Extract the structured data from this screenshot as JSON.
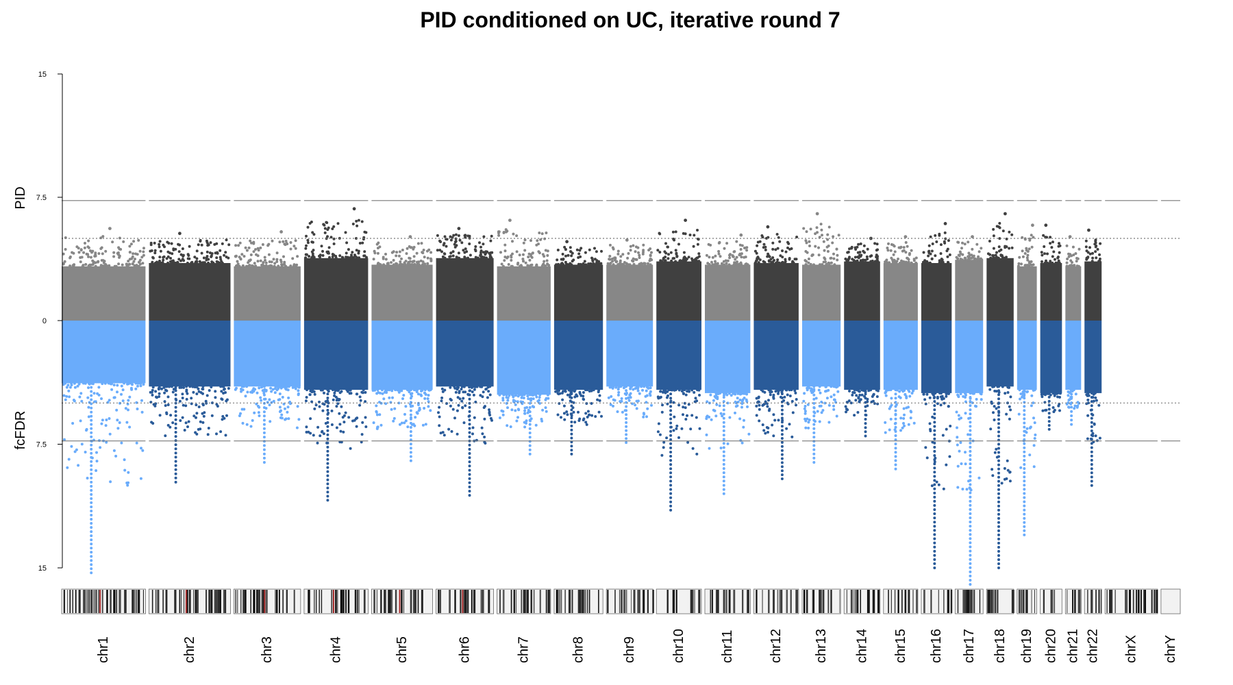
{
  "chart_data": {
    "type": "scatter",
    "title": "PID conditioned on UC, iterative round 7",
    "y_top_label": "PID",
    "y_bottom_label": "fcFDR",
    "y_ticks": [
      "15",
      "7.5",
      "0",
      "7.5",
      "15"
    ],
    "ylim_top": [
      0,
      15
    ],
    "ylim_bottom": [
      0,
      15
    ],
    "thresholds": [
      {
        "panel": "top",
        "value": 7.3,
        "style": "dashed"
      },
      {
        "panel": "top",
        "value": 5.0,
        "style": "dotted"
      },
      {
        "panel": "bottom",
        "value": 7.3,
        "style": "dashed"
      },
      {
        "panel": "bottom",
        "value": 5.0,
        "style": "dotted"
      }
    ],
    "colors": {
      "top_light": "#878787",
      "top_dark": "#404040",
      "bottom_light": "#6aacfb",
      "bottom_dark": "#2a5b99",
      "threshold": "#777777"
    },
    "chromosomes": [
      {
        "name": "chr1",
        "length": 248.9,
        "top_base": 3.3,
        "top_peak": 5.6,
        "bottom_base": 3.8,
        "bottom_peak": 15.3
      },
      {
        "name": "chr2",
        "length": 242.2,
        "top_base": 3.5,
        "top_peak": 5.3,
        "bottom_base": 4.0,
        "bottom_peak": 9.8
      },
      {
        "name": "chr3",
        "length": 198.3,
        "top_base": 3.3,
        "top_peak": 5.4,
        "bottom_base": 4.0,
        "bottom_peak": 8.6
      },
      {
        "name": "chr4",
        "length": 190.2,
        "top_base": 3.8,
        "top_peak": 6.8,
        "bottom_base": 4.2,
        "bottom_peak": 10.9
      },
      {
        "name": "chr5",
        "length": 181.5,
        "top_base": 3.4,
        "top_peak": 5.1,
        "bottom_base": 4.2,
        "bottom_peak": 8.5
      },
      {
        "name": "chr6",
        "length": 170.8,
        "top_base": 3.8,
        "top_peak": 5.6,
        "bottom_base": 4.0,
        "bottom_peak": 10.6
      },
      {
        "name": "chr7",
        "length": 159.3,
        "top_base": 3.3,
        "top_peak": 6.1,
        "bottom_base": 4.5,
        "bottom_peak": 8.1
      },
      {
        "name": "chr8",
        "length": 145.1,
        "top_base": 3.4,
        "top_peak": 4.8,
        "bottom_base": 4.2,
        "bottom_peak": 8.1
      },
      {
        "name": "chr9",
        "length": 138.4,
        "top_base": 3.4,
        "top_peak": 4.9,
        "bottom_base": 4.0,
        "bottom_peak": 7.4
      },
      {
        "name": "chr10",
        "length": 133.8,
        "top_base": 3.6,
        "top_peak": 6.1,
        "bottom_base": 4.2,
        "bottom_peak": 11.5
      },
      {
        "name": "chr11",
        "length": 135.1,
        "top_base": 3.4,
        "top_peak": 5.2,
        "bottom_base": 4.4,
        "bottom_peak": 10.5
      },
      {
        "name": "chr12",
        "length": 133.3,
        "top_base": 3.5,
        "top_peak": 5.7,
        "bottom_base": 4.2,
        "bottom_peak": 9.6
      },
      {
        "name": "chr13",
        "length": 114.4,
        "top_base": 3.4,
        "top_peak": 6.5,
        "bottom_base": 4.0,
        "bottom_peak": 8.6
      },
      {
        "name": "chr14",
        "length": 107.0,
        "top_base": 3.6,
        "top_peak": 5.0,
        "bottom_base": 4.2,
        "bottom_peak": 7.0
      },
      {
        "name": "chr15",
        "length": 102.0,
        "top_base": 3.5,
        "top_peak": 5.1,
        "bottom_base": 4.2,
        "bottom_peak": 9.0
      },
      {
        "name": "chr16",
        "length": 90.3,
        "top_base": 3.5,
        "top_peak": 5.9,
        "bottom_base": 4.4,
        "bottom_peak": 15.0
      },
      {
        "name": "chr17",
        "length": 83.3,
        "top_base": 3.7,
        "top_peak": 5.1,
        "bottom_base": 4.4,
        "bottom_peak": 16.0
      },
      {
        "name": "chr18",
        "length": 80.4,
        "top_base": 3.8,
        "top_peak": 6.5,
        "bottom_base": 4.0,
        "bottom_peak": 15.0
      },
      {
        "name": "chr19",
        "length": 58.6,
        "top_base": 3.3,
        "top_peak": 5.8,
        "bottom_base": 4.2,
        "bottom_peak": 13.0
      },
      {
        "name": "chr20",
        "length": 64.4,
        "top_base": 3.5,
        "top_peak": 5.8,
        "bottom_base": 4.4,
        "bottom_peak": 6.6
      },
      {
        "name": "chr21",
        "length": 46.7,
        "top_base": 3.3,
        "top_peak": 5.1,
        "bottom_base": 4.2,
        "bottom_peak": 6.3
      },
      {
        "name": "chr22",
        "length": 50.8,
        "top_base": 3.6,
        "top_peak": 5.5,
        "bottom_base": 4.4,
        "bottom_peak": 10.0
      },
      {
        "name": "chrX",
        "length": 156.0,
        "top_base": 0,
        "top_peak": 0,
        "bottom_base": 0,
        "bottom_peak": 0
      },
      {
        "name": "chrY",
        "length": 57.2,
        "top_base": 0,
        "top_peak": 0,
        "bottom_base": 0,
        "bottom_peak": 0
      }
    ]
  }
}
